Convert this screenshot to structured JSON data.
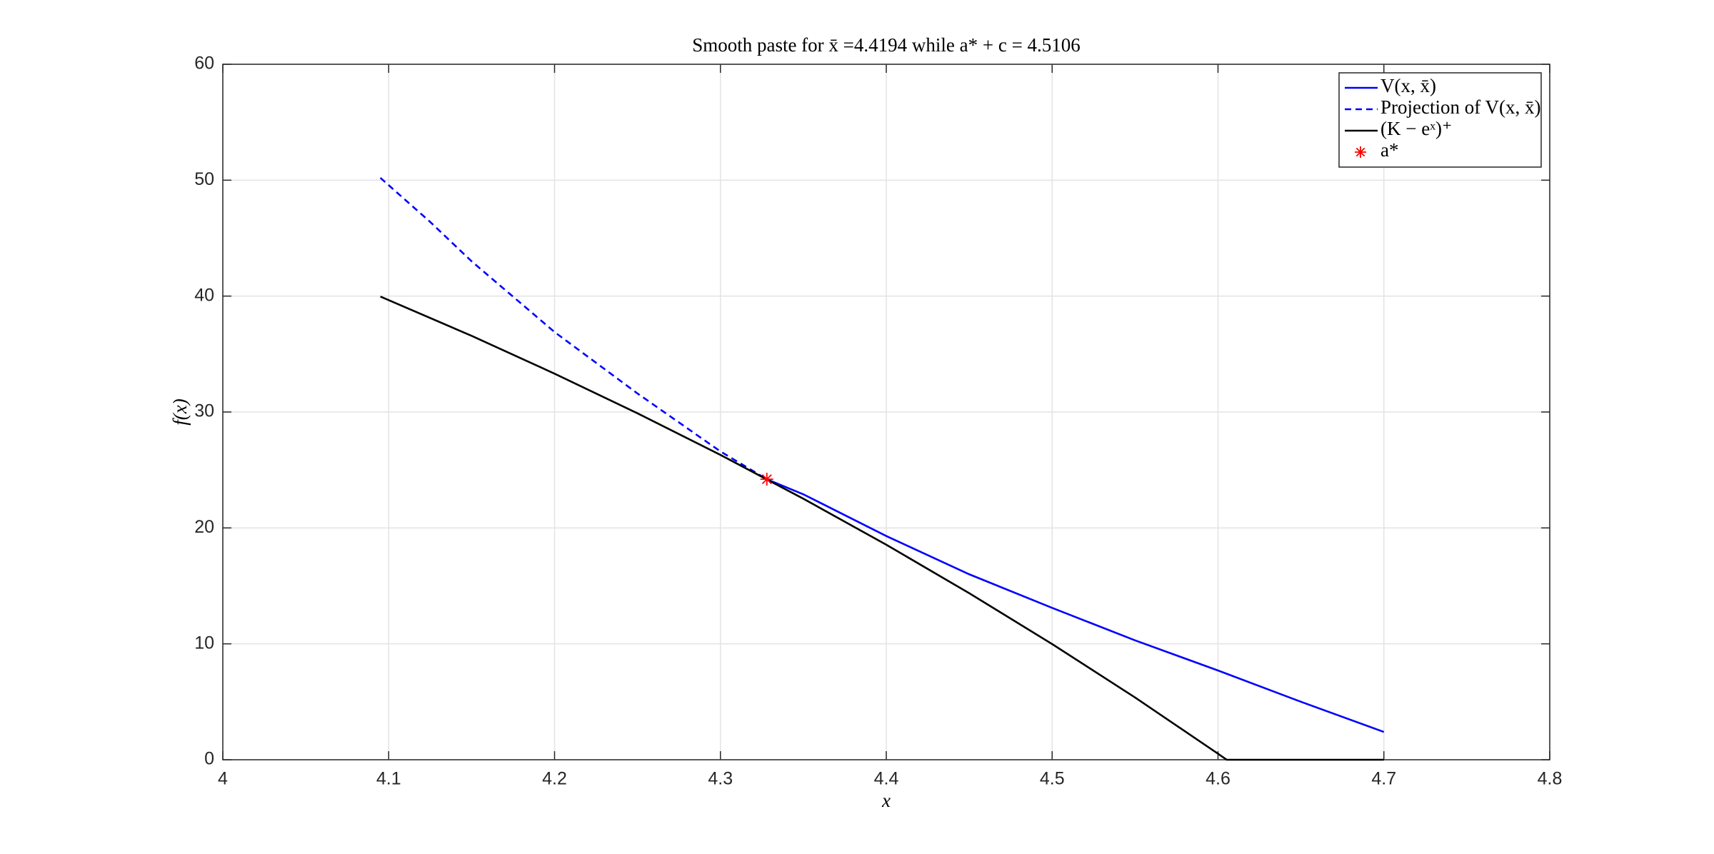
{
  "chart_data": {
    "type": "line",
    "title": "Smooth paste for x̄ =4.4194 while a* + c = 4.5106",
    "xlabel": "x",
    "ylabel": "f(x)",
    "xlim": [
      4,
      4.8
    ],
    "xticks": [
      4,
      4.1,
      4.2,
      4.3,
      4.4,
      4.5,
      4.6,
      4.7,
      4.8
    ],
    "ylim": [
      0,
      60
    ],
    "yticks": [
      0,
      10,
      20,
      30,
      40,
      50,
      60
    ],
    "grid": true,
    "legend": "upper right",
    "series": [
      {
        "name": "V(x, x̄)",
        "color": "#0000ff",
        "style": "solid",
        "x": [
          4.328,
          4.35,
          4.4,
          4.45,
          4.5,
          4.55,
          4.6,
          4.65,
          4.7
        ],
        "values": [
          24.2,
          22.9,
          19.3,
          16.0,
          13.1,
          10.3,
          7.7,
          5.0,
          2.4
        ]
      },
      {
        "name": "Projection of V(x, x̄)",
        "color": "#0000ff",
        "style": "dashed",
        "x": [
          4.095,
          4.125,
          4.15,
          4.2,
          4.25,
          4.3,
          4.328
        ],
        "values": [
          50.2,
          46.4,
          43.0,
          36.9,
          31.6,
          26.6,
          24.2
        ]
      },
      {
        "name": "(K − eˣ)⁺",
        "color": "#000000",
        "style": "solid",
        "x": [
          4.095,
          4.15,
          4.2,
          4.25,
          4.3,
          4.35,
          4.4,
          4.45,
          4.5,
          4.55,
          4.6,
          4.6052,
          4.7
        ],
        "values": [
          39.96,
          36.57,
          33.31,
          29.89,
          26.3,
          22.52,
          18.55,
          14.37,
          9.98,
          5.37,
          0.52,
          0,
          0
        ]
      },
      {
        "name": "a*",
        "color": "#ff0000",
        "style": "marker",
        "x": [
          4.328
        ],
        "values": [
          24.2
        ]
      }
    ]
  }
}
